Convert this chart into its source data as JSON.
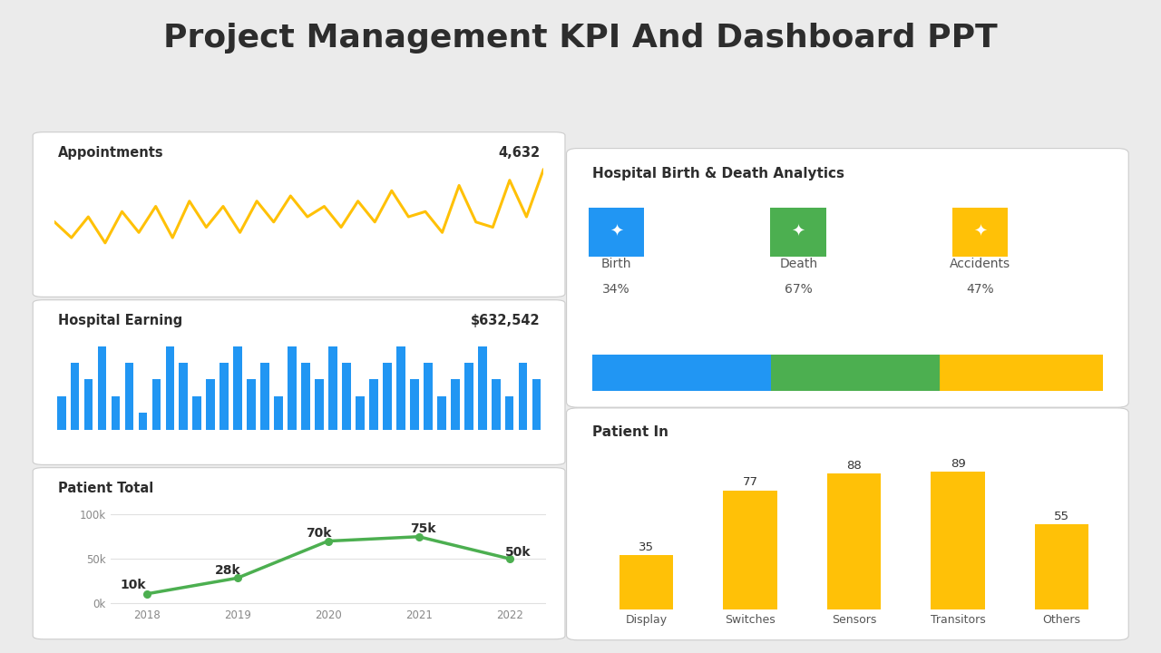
{
  "title": "Project Management KPI And Dashboard PPT",
  "title_fontsize": 26,
  "title_color": "#2d2d2d",
  "background_color": "#ebebeb",
  "panel_color": "#ffffff",
  "appointments_label": "Appointments",
  "appointments_value": "4,632",
  "appointments_line_color": "#FFC107",
  "appointments_y": [
    3.5,
    3.2,
    3.6,
    3.1,
    3.7,
    3.3,
    3.8,
    3.2,
    3.9,
    3.4,
    3.8,
    3.3,
    3.9,
    3.5,
    4.0,
    3.6,
    3.8,
    3.4,
    3.9,
    3.5,
    4.1,
    3.6,
    3.7,
    3.3,
    4.2,
    3.5,
    3.4,
    4.3,
    3.6,
    4.5
  ],
  "hospital_earning_label": "Hospital Earning",
  "hospital_earning_value": "$632,542",
  "hospital_bar_color": "#2196F3",
  "hospital_bars": [
    2,
    4,
    3,
    5,
    2,
    4,
    1,
    3,
    5,
    4,
    2,
    3,
    4,
    5,
    3,
    4,
    2,
    5,
    4,
    3,
    5,
    4,
    2,
    3,
    4,
    5,
    3,
    4,
    2,
    3,
    4,
    5,
    3,
    2,
    4,
    3
  ],
  "birth_death_title": "Hospital Birth & Death Analytics",
  "birth_label": "Birth",
  "birth_pct": "34%",
  "birth_color": "#2196F3",
  "death_label": "Death",
  "death_pct": "67%",
  "death_color": "#4CAF50",
  "accidents_label": "Accidents",
  "accidents_pct": "47%",
  "accidents_color": "#FFC107",
  "bar_proportions": [
    35,
    33,
    32
  ],
  "patient_total_title": "Patient Total",
  "patient_years": [
    2018,
    2019,
    2020,
    2021,
    2022
  ],
  "patient_values": [
    10000,
    28000,
    70000,
    75000,
    50000
  ],
  "patient_labels": [
    "10k",
    "28k",
    "70k",
    "75k",
    "50k"
  ],
  "patient_line_color": "#4CAF50",
  "patient_marker_color": "#4CAF50",
  "patient_yticks": [
    0,
    50000,
    100000
  ],
  "patient_ytick_labels": [
    "0k",
    "50k",
    "100k"
  ],
  "patient_in_title": "Patient In",
  "patient_in_categories": [
    "Display",
    "Switches",
    "Sensors",
    "Transitors",
    "Others"
  ],
  "patient_in_values": [
    35,
    77,
    88,
    89,
    55
  ],
  "patient_in_bar_color": "#FFC107"
}
